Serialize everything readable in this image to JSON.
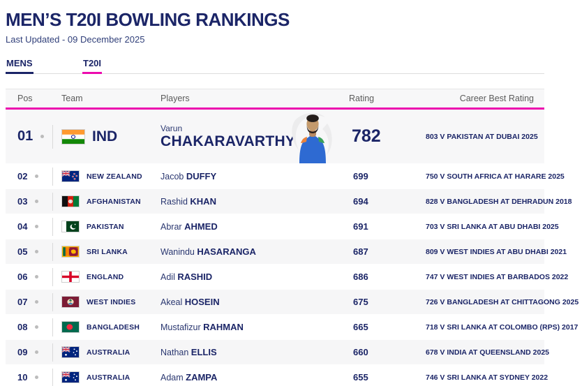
{
  "page": {
    "title": "MEN’S T20I BOWLING RANKINGS",
    "last_updated": "Last Updated - 09 December 2025"
  },
  "tabs": [
    {
      "label": "MENS",
      "underline_color": "#1b2567",
      "active": true
    },
    {
      "label": "T20I",
      "underline_color": "#ec0bae",
      "active": true
    }
  ],
  "colors": {
    "navy_text": "#1b2567",
    "accent_magenta": "#ec0bae",
    "row_alt_background": "#f6f6f7",
    "header_background": "#f7f7f8"
  },
  "table": {
    "headers": {
      "pos": "Pos",
      "team": "Team",
      "players": "Players",
      "rating": "Rating",
      "career_best": "Career Best Rating"
    },
    "rows": [
      {
        "pos": "01",
        "flag": "flag-india",
        "team": "IND",
        "first": "Varun",
        "last": "CHAKARAVARTHY",
        "rating": "782",
        "career_best": "803 V PAKISTAN AT DUBAI 2025",
        "featured": true,
        "photo": "player-photo"
      },
      {
        "pos": "02",
        "flag": "flag-new-zealand",
        "team": "NEW ZEALAND",
        "first": "Jacob",
        "last": "DUFFY",
        "rating": "699",
        "career_best": "750 V SOUTH AFRICA AT HARARE 2025"
      },
      {
        "pos": "03",
        "flag": "flag-afghanistan",
        "team": "AFGHANISTAN",
        "first": "Rashid",
        "last": "KHAN",
        "rating": "694",
        "career_best": "828 V BANGLADESH AT DEHRADUN 2018"
      },
      {
        "pos": "04",
        "flag": "flag-pakistan",
        "team": "PAKISTAN",
        "first": "Abrar",
        "last": "AHMED",
        "rating": "691",
        "career_best": "703 V SRI LANKA AT ABU DHABI 2025"
      },
      {
        "pos": "05",
        "flag": "flag-sri-lanka",
        "team": "SRI LANKA",
        "first": "Wanindu",
        "last": "HASARANGA",
        "rating": "687",
        "career_best": "809 V WEST INDIES AT ABU DHABI 2021"
      },
      {
        "pos": "06",
        "flag": "flag-england",
        "team": "ENGLAND",
        "first": "Adil",
        "last": "RASHID",
        "rating": "686",
        "career_best": "747 V WEST INDIES AT BARBADOS 2022"
      },
      {
        "pos": "07",
        "flag": "flag-west-indies",
        "team": "WEST INDIES",
        "first": "Akeal",
        "last": "HOSEIN",
        "rating": "675",
        "career_best": "726 V BANGLADESH AT CHITTAGONG 2025"
      },
      {
        "pos": "08",
        "flag": "flag-bangladesh",
        "team": "BANGLADESH",
        "first": "Mustafizur",
        "last": "RAHMAN",
        "rating": "665",
        "career_best": "718 V SRI LANKA AT COLOMBO (RPS) 2017"
      },
      {
        "pos": "09",
        "flag": "flag-australia",
        "team": "AUSTRALIA",
        "first": "Nathan",
        "last": "ELLIS",
        "rating": "660",
        "career_best": "678 V INDIA AT QUEENSLAND 2025"
      },
      {
        "pos": "10",
        "flag": "flag-australia",
        "team": "AUSTRALIA",
        "first": "Adam",
        "last": "ZAMPA",
        "rating": "655",
        "career_best": "746 V SRI LANKA AT SYDNEY 2022"
      }
    ]
  }
}
